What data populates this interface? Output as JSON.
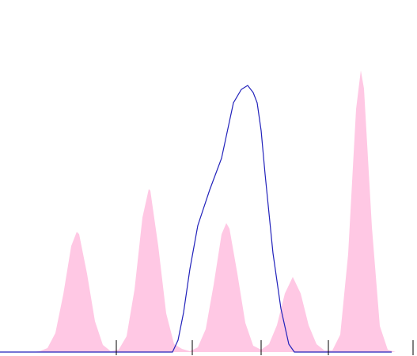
{
  "chart_data": {
    "type": "area",
    "xlim": [
      0,
      527
    ],
    "ylim": [
      0,
      445
    ],
    "xticks": [
      147,
      243,
      330,
      415,
      522
    ],
    "series": [
      {
        "kind": "area",
        "color": "#ffc8e4",
        "x": [
          0,
          40,
          50,
          60,
          70,
          80,
          90,
          97,
          100,
          110,
          120,
          130,
          140,
          150,
          160,
          170,
          180,
          188,
          190,
          200,
          210,
          220,
          230,
          240,
          250,
          260,
          270,
          280,
          286,
          290,
          300,
          310,
          320,
          330,
          340,
          350,
          360,
          370,
          380,
          390,
          400,
          410,
          420,
          430,
          440,
          450,
          456,
          460,
          470,
          480,
          490,
          500,
          527
        ],
        "values": [
          0,
          0,
          1,
          5,
          24,
          73,
          134,
          152,
          149,
          99,
          39,
          9,
          1,
          3,
          20,
          79,
          170,
          206,
          204,
          134,
          49,
          10,
          4,
          1,
          6,
          29,
          85,
          149,
          163,
          156,
          99,
          37,
          8,
          3,
          10,
          34,
          74,
          95,
          74,
          34,
          10,
          2,
          2,
          22,
          124,
          307,
          356,
          333,
          158,
          33,
          3,
          0,
          0
        ]
      },
      {
        "kind": "line",
        "color": "#2222bb",
        "x": [
          0,
          218,
          225,
          232,
          240,
          250,
          265,
          280,
          295,
          305,
          313,
          320,
          325,
          330,
          335,
          345,
          355,
          365,
          372,
          495
        ],
        "values": [
          0,
          0,
          15,
          50,
          105,
          160,
          205,
          245,
          315,
          332,
          337,
          328,
          315,
          280,
          225,
          125,
          55,
          10,
          0,
          0
        ]
      }
    ]
  }
}
